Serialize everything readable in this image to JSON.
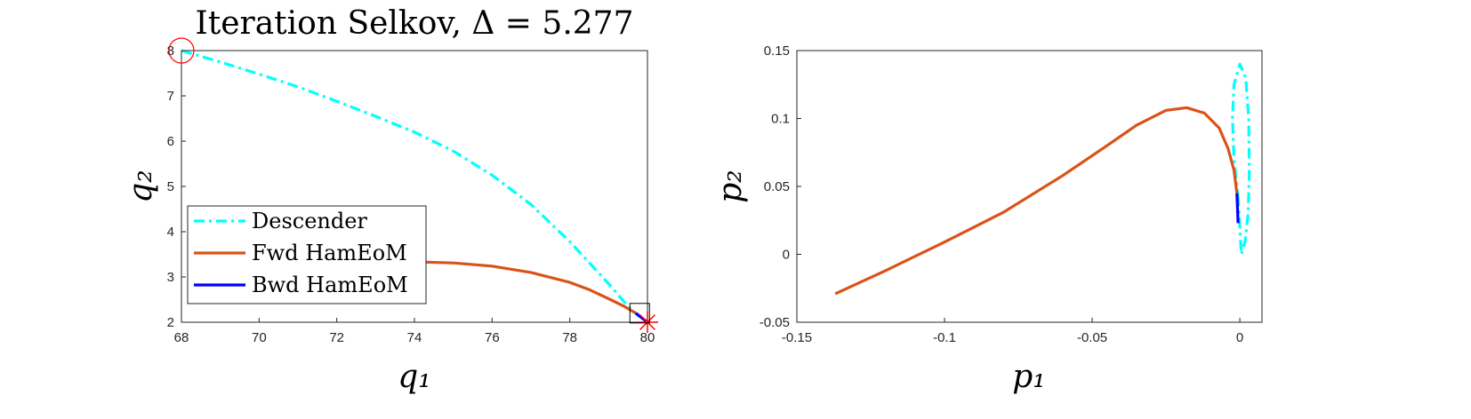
{
  "figure": {
    "title": "Iteration Selkov, Δ = 5.277"
  },
  "chart_data": [
    {
      "type": "line",
      "title": "Iteration Selkov, Δ = 5.277",
      "xlabel": "q₁",
      "ylabel": "q₂",
      "xlim": [
        68,
        80
      ],
      "ylim": [
        2,
        8
      ],
      "xticks": [
        68,
        70,
        72,
        74,
        76,
        78,
        80
      ],
      "yticks": [
        2,
        3,
        4,
        5,
        6,
        7,
        8
      ],
      "grid": false,
      "legend_position": "bottom-left",
      "series": [
        {
          "name": "Descender",
          "color": "#00ffff",
          "style": "dash-dot",
          "x": [
            68,
            69,
            70,
            71,
            72,
            73,
            74,
            75,
            76,
            77,
            78,
            79,
            79.5,
            79.8
          ],
          "y": [
            8.0,
            7.75,
            7.48,
            7.2,
            6.88,
            6.55,
            6.2,
            5.78,
            5.25,
            4.6,
            3.78,
            2.85,
            2.35,
            2.12
          ]
        },
        {
          "name": "Fwd HamEoM",
          "color": "#d95319",
          "style": "solid",
          "x": [
            74.2,
            75,
            76,
            77,
            78,
            78.5,
            79,
            79.4,
            79.7
          ],
          "y": [
            3.33,
            3.31,
            3.24,
            3.1,
            2.88,
            2.72,
            2.52,
            2.35,
            2.2
          ]
        },
        {
          "name": "Bwd HamEoM",
          "color": "#0000ff",
          "style": "solid",
          "x": [
            79.7,
            79.85,
            80.0
          ],
          "y": [
            2.2,
            2.1,
            2.0
          ]
        }
      ],
      "markers": [
        {
          "name": "start-circle",
          "x": 68,
          "y": 8,
          "color": "#ff0000",
          "shape": "circle"
        },
        {
          "name": "end-star",
          "x": 80,
          "y": 2,
          "color": "#ff0000",
          "shape": "star"
        },
        {
          "name": "box",
          "x": 79.8,
          "y": 2.2,
          "color": "#000000",
          "shape": "square"
        }
      ]
    },
    {
      "type": "line",
      "title": "",
      "xlabel": "p₁",
      "ylabel": "p₂",
      "xlim": [
        -0.15,
        0.0075
      ],
      "ylim": [
        -0.05,
        0.15
      ],
      "xticks": [
        -0.15,
        -0.1,
        -0.05,
        0
      ],
      "yticks": [
        -0.05,
        0,
        0.05,
        0.1,
        0.15
      ],
      "xtick_labels": [
        "-0.15",
        "-0.1",
        "-0.05",
        "0"
      ],
      "ytick_labels": [
        "-0.05",
        "0",
        "0.05",
        "0.1",
        "0.15"
      ],
      "grid": false,
      "series": [
        {
          "name": "Descender",
          "color": "#00ffff",
          "style": "dash-dot",
          "x": [
            -0.0005,
            -0.002,
            -0.0025,
            -0.002,
            0.0,
            0.002,
            0.003,
            0.0032,
            0.0028,
            0.0018,
            0.0005,
            -0.0005
          ],
          "y": [
            0.04,
            0.07,
            0.1,
            0.125,
            0.14,
            0.13,
            0.1,
            0.06,
            0.03,
            0.01,
            0.0,
            0.04
          ]
        },
        {
          "name": "Fwd HamEoM",
          "color": "#d95319",
          "style": "solid",
          "x": [
            -0.137,
            -0.12,
            -0.1,
            -0.08,
            -0.06,
            -0.045,
            -0.035,
            -0.025,
            -0.018,
            -0.012,
            -0.007,
            -0.004,
            -0.002,
            -0.001
          ],
          "y": [
            -0.029,
            -0.012,
            0.009,
            0.031,
            0.058,
            0.08,
            0.095,
            0.106,
            0.108,
            0.104,
            0.093,
            0.078,
            0.062,
            0.045
          ]
        },
        {
          "name": "Bwd HamEoM",
          "color": "#0000ff",
          "style": "solid",
          "x": [
            -0.001,
            -0.0008,
            -0.0006
          ],
          "y": [
            0.045,
            0.035,
            0.023
          ]
        }
      ]
    }
  ]
}
